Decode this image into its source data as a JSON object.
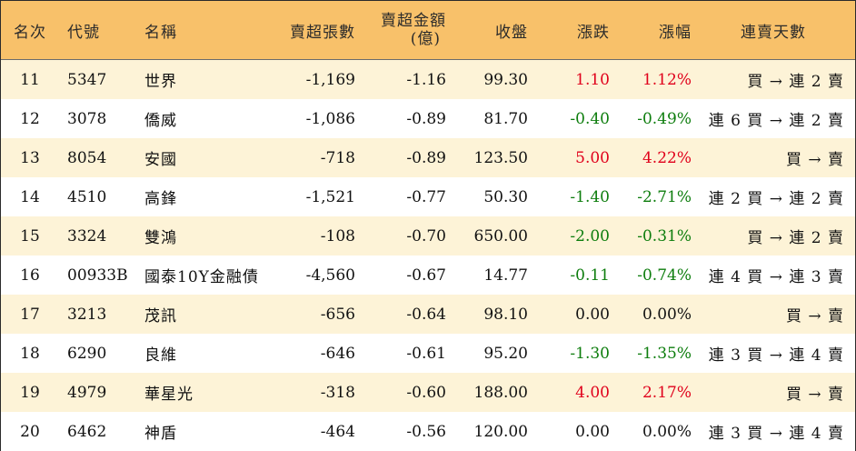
{
  "headers": {
    "rank": "名次",
    "code": "代號",
    "name": "名稱",
    "net_sell_lots": "賣超張數",
    "net_sell_amount": "賣超金額",
    "net_sell_amount_unit": "(億)",
    "close": "收盤",
    "change": "漲跌",
    "change_pct": "漲幅",
    "streak": "連賣天數"
  },
  "colors": {
    "header_bg": "#f8c16a",
    "stripe_bg": "#fdf3d7",
    "up": "#e0001b",
    "down": "#0d7d0d"
  },
  "rows": [
    {
      "rank": "11",
      "code": "5347",
      "name": "世界",
      "lots": "-1,169",
      "amount": "-1.16",
      "close": "99.30",
      "change": "1.10",
      "pct": "1.12%",
      "dir": "up",
      "streak": "買 → 連 2 賣"
    },
    {
      "rank": "12",
      "code": "3078",
      "name": "僑威",
      "lots": "-1,086",
      "amount": "-0.89",
      "close": "81.70",
      "change": "-0.40",
      "pct": "-0.49%",
      "dir": "down",
      "streak": "連 6 買 → 連 2 賣"
    },
    {
      "rank": "13",
      "code": "8054",
      "name": "安國",
      "lots": "-718",
      "amount": "-0.89",
      "close": "123.50",
      "change": "5.00",
      "pct": "4.22%",
      "dir": "up",
      "streak": "買 → 賣"
    },
    {
      "rank": "14",
      "code": "4510",
      "name": "高鋒",
      "lots": "-1,521",
      "amount": "-0.77",
      "close": "50.30",
      "change": "-1.40",
      "pct": "-2.71%",
      "dir": "down",
      "streak": "連 2 買 → 連 2 賣"
    },
    {
      "rank": "15",
      "code": "3324",
      "name": "雙鴻",
      "lots": "-108",
      "amount": "-0.70",
      "close": "650.00",
      "change": "-2.00",
      "pct": "-0.31%",
      "dir": "down",
      "streak": "買 → 連 2 賣"
    },
    {
      "rank": "16",
      "code": "00933B",
      "name": "國泰10Y金融債",
      "lots": "-4,560",
      "amount": "-0.67",
      "close": "14.77",
      "change": "-0.11",
      "pct": "-0.74%",
      "dir": "down",
      "streak": "連 4 買 → 連 3 賣"
    },
    {
      "rank": "17",
      "code": "3213",
      "name": "茂訊",
      "lots": "-656",
      "amount": "-0.64",
      "close": "98.10",
      "change": "0.00",
      "pct": "0.00%",
      "dir": "flat",
      "streak": "買 → 賣"
    },
    {
      "rank": "18",
      "code": "6290",
      "name": "良維",
      "lots": "-646",
      "amount": "-0.61",
      "close": "95.20",
      "change": "-1.30",
      "pct": "-1.35%",
      "dir": "down",
      "streak": "連 3 買 → 連 4 賣"
    },
    {
      "rank": "19",
      "code": "4979",
      "name": "華星光",
      "lots": "-318",
      "amount": "-0.60",
      "close": "188.00",
      "change": "4.00",
      "pct": "2.17%",
      "dir": "up",
      "streak": "買 → 賣"
    },
    {
      "rank": "20",
      "code": "6462",
      "name": "神盾",
      "lots": "-464",
      "amount": "-0.56",
      "close": "120.00",
      "change": "0.00",
      "pct": "0.00%",
      "dir": "flat",
      "streak": "連 3 買 → 連 4 賣"
    }
  ]
}
